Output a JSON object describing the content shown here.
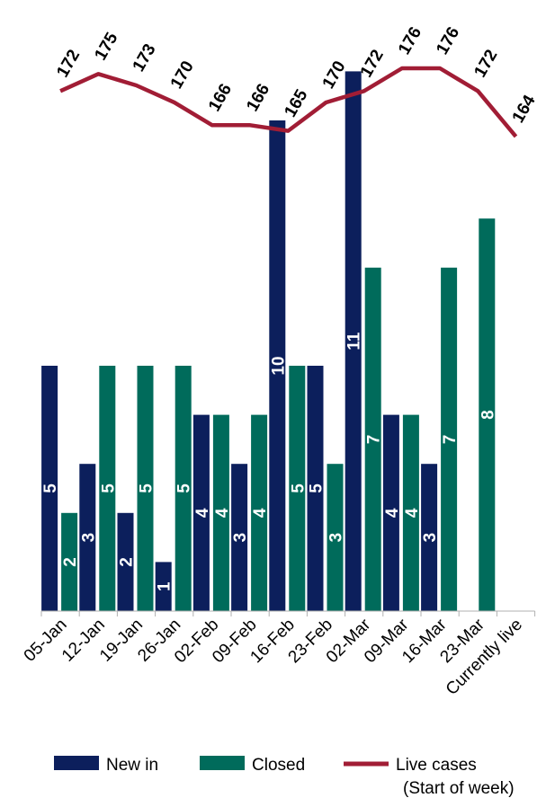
{
  "chart_data": {
    "type": "bar",
    "title": "",
    "xlabel": "",
    "ylabel": "",
    "ylim": [
      0,
      11
    ],
    "grid": false,
    "legend_position": "bottom",
    "categories": [
      "05-Jan",
      "12-Jan",
      "19-Jan",
      "26-Jan",
      "02-Feb",
      "09-Feb",
      "16-Feb",
      "23-Feb",
      "02-Mar",
      "09-Mar",
      "16-Mar",
      "23-Mar",
      "Currently live"
    ],
    "series": [
      {
        "name": "New in",
        "kind": "bar",
        "color": "#0c1f5c",
        "values": [
          5,
          3,
          2,
          1,
          4,
          3,
          10,
          5,
          11,
          4,
          3,
          null,
          null
        ]
      },
      {
        "name": "Closed",
        "kind": "bar",
        "color": "#006b5b",
        "values": [
          2,
          5,
          5,
          5,
          4,
          4,
          5,
          3,
          7,
          4,
          7,
          8,
          null
        ]
      },
      {
        "name": "Live cases",
        "name_line2": "(Start of week)",
        "kind": "line",
        "color": "#a11d35",
        "values": [
          172,
          175,
          173,
          170,
          166,
          166,
          165,
          170,
          172,
          176,
          176,
          172,
          164
        ]
      }
    ]
  }
}
